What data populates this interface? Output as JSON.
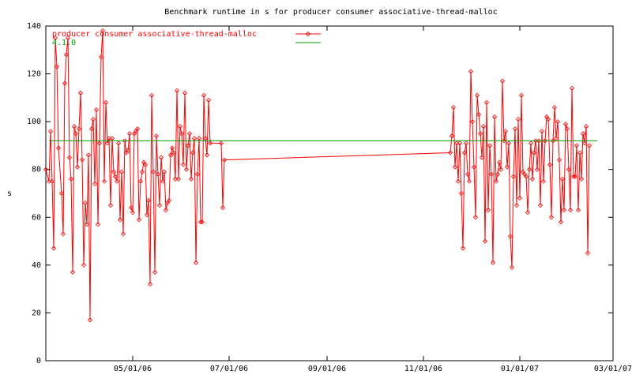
{
  "chart_data": {
    "type": "line",
    "title": "Benchmark runtime in s for producer consumer associative-thread-malloc",
    "y_label": "s",
    "xlim": [
      "03/07/06",
      "03/01/07"
    ],
    "xticks": [
      "05/01/06",
      "07/01/06",
      "09/01/06",
      "11/01/06",
      "01/01/07",
      "03/01/07"
    ],
    "ylim": [
      0,
      140
    ],
    "yticks": [
      0,
      20,
      40,
      60,
      80,
      100,
      120,
      140
    ],
    "series": [
      {
        "name": "producer consumer associative-thread-malloc",
        "color": "#ff0000",
        "markers": true,
        "x": [
          "03/07/06",
          "03/09/06",
          "03/10/06",
          "03/11/06",
          "03/12/06",
          "03/13/06",
          "03/14/06",
          "03/15/06",
          "03/17/06",
          "03/18/06",
          "03/19/06",
          "03/20/06",
          "03/21/06",
          "03/22/06",
          "03/23/06",
          "03/24/06",
          "03/25/06",
          "03/26/06",
          "03/27/06",
          "03/28/06",
          "03/29/06",
          "03/30/06",
          "03/31/06",
          "04/01/06",
          "04/02/06",
          "04/03/06",
          "04/04/06",
          "04/05/06",
          "04/06/06",
          "04/07/06",
          "04/08/06",
          "04/09/06",
          "04/10/06",
          "04/11/06",
          "04/12/06",
          "04/13/06",
          "04/14/06",
          "04/15/06",
          "04/16/06",
          "04/17/06",
          "04/18/06",
          "04/19/06",
          "04/20/06",
          "04/21/06",
          "04/22/06",
          "04/23/06",
          "04/24/06",
          "04/25/06",
          "04/26/06",
          "04/27/06",
          "04/28/06",
          "04/29/06",
          "04/30/06",
          "05/01/06",
          "05/02/06",
          "05/03/06",
          "05/04/06",
          "05/05/06",
          "05/06/06",
          "05/07/06",
          "05/08/06",
          "05/09/06",
          "05/10/06",
          "05/11/06",
          "05/12/06",
          "05/13/06",
          "05/14/06",
          "05/15/06",
          "05/16/06",
          "05/17/06",
          "05/18/06",
          "05/19/06",
          "05/20/06",
          "05/21/06",
          "05/22/06",
          "05/23/06",
          "05/24/06",
          "05/25/06",
          "05/26/06",
          "05/27/06",
          "05/28/06",
          "05/29/06",
          "05/30/06",
          "05/31/06",
          "06/01/06",
          "06/02/06",
          "06/03/06",
          "06/04/06",
          "06/05/06",
          "06/06/06",
          "06/07/06",
          "06/08/06",
          "06/09/06",
          "06/10/06",
          "06/11/06",
          "06/12/06",
          "06/13/06",
          "06/14/06",
          "06/15/06",
          "06/16/06",
          "06/17/06",
          "06/18/06",
          "06/19/06",
          "06/26/06",
          "06/27/06",
          "06/28/06",
          "11/18/06",
          "11/19/06",
          "11/20/06",
          "11/21/06",
          "11/22/06",
          "11/23/06",
          "11/24/06",
          "11/25/06",
          "11/26/06",
          "11/27/06",
          "11/28/06",
          "11/29/06",
          "11/30/06",
          "12/01/06",
          "12/02/06",
          "12/03/06",
          "12/04/06",
          "12/05/06",
          "12/06/06",
          "12/07/06",
          "12/08/06",
          "12/09/06",
          "12/10/06",
          "12/11/06",
          "12/12/06",
          "12/13/06",
          "12/14/06",
          "12/15/06",
          "12/16/06",
          "12/17/06",
          "12/18/06",
          "12/19/06",
          "12/20/06",
          "12/21/06",
          "12/22/06",
          "12/23/06",
          "12/24/06",
          "12/25/06",
          "12/26/06",
          "12/27/06",
          "12/28/06",
          "12/29/06",
          "12/30/06",
          "12/31/06",
          "01/01/07",
          "01/02/07",
          "01/03/07",
          "01/04/07",
          "01/05/07",
          "01/06/07",
          "01/07/07",
          "01/08/07",
          "01/09/07",
          "01/10/07",
          "01/11/07",
          "01/12/07",
          "01/13/07",
          "01/14/07",
          "01/15/07",
          "01/16/07",
          "01/17/07",
          "01/18/07",
          "01/19/07",
          "01/20/07",
          "01/21/07",
          "01/22/07",
          "01/23/07",
          "01/24/07",
          "01/25/07",
          "01/26/07",
          "01/27/07",
          "01/28/07",
          "01/29/07",
          "01/30/07",
          "01/31/07",
          "02/01/07",
          "02/02/07",
          "02/03/07",
          "02/04/07",
          "02/05/07",
          "02/06/07",
          "02/07/07",
          "02/08/07",
          "02/09/07",
          "02/10/07",
          "02/11/07",
          "02/12/07",
          "02/13/07",
          "02/14/07"
        ],
        "values": [
          80,
          75,
          96,
          75,
          47,
          135,
          123,
          89,
          70,
          53,
          116,
          128,
          135,
          85,
          76,
          37,
          98,
          95,
          81,
          97,
          112,
          84,
          40,
          66,
          57,
          86,
          17,
          97,
          101,
          74,
          105,
          57,
          91,
          127,
          138,
          75,
          108,
          91,
          93,
          65,
          93,
          79,
          77,
          75,
          91,
          59,
          79,
          53,
          92,
          87,
          88,
          95,
          64,
          62,
          95,
          96,
          97,
          59,
          75,
          79,
          83,
          82,
          61,
          67,
          32,
          111,
          79,
          37,
          94,
          78,
          65,
          85,
          75,
          79,
          63,
          66,
          67,
          86,
          89,
          87,
          76,
          113,
          76,
          98,
          95,
          82,
          112,
          80,
          90,
          95,
          76,
          87,
          93,
          41,
          78,
          93,
          58,
          58,
          111,
          93,
          86,
          109,
          91,
          91,
          64,
          84,
          87,
          94,
          106,
          81,
          91,
          75,
          91,
          70,
          47,
          87,
          91,
          78,
          75,
          121,
          100,
          81,
          60,
          111,
          103,
          95,
          85,
          98,
          50,
          108,
          63,
          90,
          78,
          41,
          102,
          75,
          78,
          83,
          80,
          117,
          92,
          96,
          81,
          91,
          52,
          39,
          77,
          97,
          65,
          101,
          68,
          111,
          79,
          78,
          77,
          62,
          80,
          91,
          76,
          87,
          92,
          80,
          92,
          65,
          96,
          75,
          92,
          102,
          101,
          82,
          60,
          92,
          106,
          93,
          100,
          84,
          58,
          76,
          63,
          99,
          97,
          80,
          63,
          114,
          77,
          77,
          90,
          63,
          87,
          76,
          95,
          91,
          98,
          45,
          90
        ]
      },
      {
        "name": "4.1.0",
        "color": "#00a000",
        "markers": false,
        "x": [
          "03/09/06",
          "02/19/07"
        ],
        "values": [
          92,
          92
        ]
      }
    ]
  }
}
